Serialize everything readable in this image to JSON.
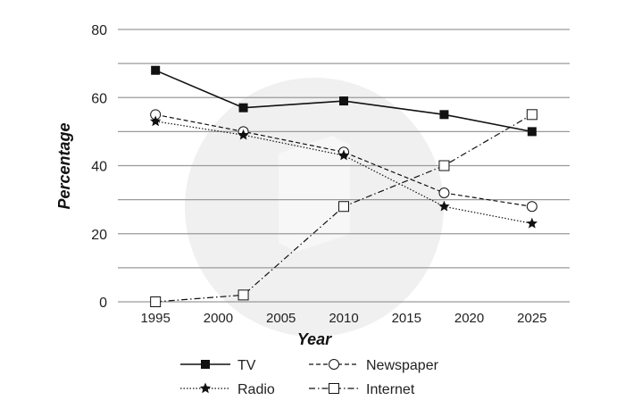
{
  "chart_data": {
    "type": "line",
    "xlabel": "Year",
    "ylabel": "Percentage",
    "ylim": [
      0,
      80
    ],
    "yticks": [
      "0",
      "20",
      "40",
      "60",
      "80"
    ],
    "xticks": [
      "1995",
      "2000",
      "2005",
      "2010",
      "2015",
      "2020",
      "2025"
    ],
    "grid": "horizontal",
    "legend_position": "bottom",
    "series": [
      {
        "name": "TV",
        "style": "solid",
        "marker": "filled-square",
        "points": [
          {
            "x": 1995,
            "y": 68
          },
          {
            "x": 2002,
            "y": 57
          },
          {
            "x": 2010,
            "y": 59
          },
          {
            "x": 2018,
            "y": 55
          },
          {
            "x": 2025,
            "y": 50
          }
        ]
      },
      {
        "name": "Newspaper",
        "style": "dashed",
        "marker": "open-circle",
        "points": [
          {
            "x": 1995,
            "y": 55
          },
          {
            "x": 2002,
            "y": 50
          },
          {
            "x": 2010,
            "y": 44
          },
          {
            "x": 2018,
            "y": 32
          },
          {
            "x": 2025,
            "y": 28
          }
        ]
      },
      {
        "name": "Radio",
        "style": "dotted",
        "marker": "star",
        "points": [
          {
            "x": 1995,
            "y": 53
          },
          {
            "x": 2002,
            "y": 49
          },
          {
            "x": 2010,
            "y": 43
          },
          {
            "x": 2018,
            "y": 28
          },
          {
            "x": 2025,
            "y": 23
          }
        ]
      },
      {
        "name": "Internet",
        "style": "dash-dot",
        "marker": "open-square",
        "points": [
          {
            "x": 1995,
            "y": 0
          },
          {
            "x": 2002,
            "y": 2
          },
          {
            "x": 2010,
            "y": 28
          },
          {
            "x": 2018,
            "y": 40
          },
          {
            "x": 2025,
            "y": 55
          }
        ]
      }
    ]
  },
  "colors": {
    "line": "#111111",
    "grid": "#9a9a9a",
    "watermark": "#eeeeee"
  }
}
